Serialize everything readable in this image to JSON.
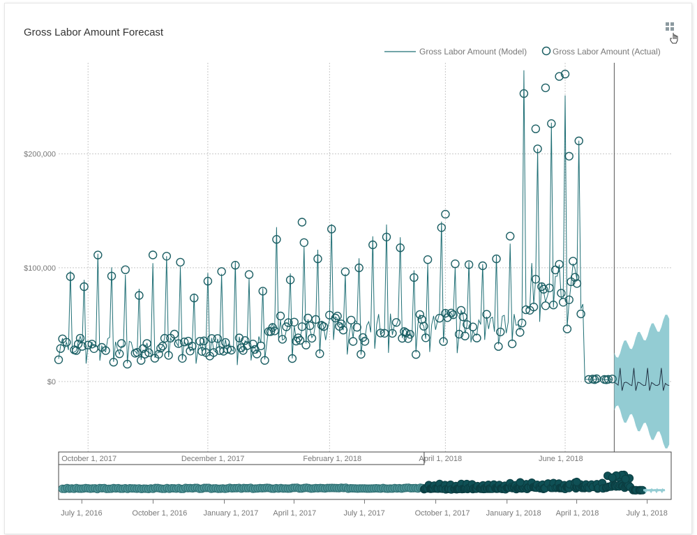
{
  "title": "Gross Labor Amount Forecast",
  "icons": {
    "expand": "collapse-arrows-icon",
    "cursor": "hand-pointer-icon"
  },
  "colors": {
    "model": "#1f6f75",
    "actual": "#1b5e63",
    "band": "#93ccd3",
    "overviewOld": "#4e9497",
    "overviewNew": "#0f5055",
    "grid": "#c8c8c8",
    "text": "#777777"
  },
  "legend": {
    "model": "Gross Labor Amount (Model)",
    "actual": "Gross Labor Amount (Actual)"
  },
  "chart_data": {
    "type": "line",
    "title": "Gross Labor Amount Forecast",
    "ylabel": "",
    "ylim": [
      -60000,
      280000
    ],
    "y_ticks": [
      {
        "value": 0,
        "label": "$0"
      },
      {
        "value": 100000,
        "label": "$100,000"
      },
      {
        "value": 200000,
        "label": "$200,000"
      }
    ],
    "x_start": "2017-09-16",
    "x_end": "2018-07-25",
    "forecast_start": "2018-06-26",
    "x_ticks": [
      {
        "date": "2017-10-01",
        "label": "October 1, 2017"
      },
      {
        "date": "2017-12-01",
        "label": "December 1, 2017"
      },
      {
        "date": "2018-02-01",
        "label": "February 1, 2018"
      },
      {
        "date": "2018-04-01",
        "label": "April 1, 2018"
      },
      {
        "date": "2018-06-01",
        "label": "June 1, 2018"
      }
    ],
    "segments": [
      {
        "from": "2017-09-16",
        "to": "2017-12-31",
        "base": 32000,
        "spike": 95000,
        "weekly": true
      },
      {
        "from": "2018-01-01",
        "to": "2018-03-31",
        "base": 48000,
        "spike": 118000,
        "weekly": true
      },
      {
        "from": "2018-04-01",
        "to": "2018-05-10",
        "base": 52000,
        "spike": 118000,
        "weekly": true
      },
      {
        "from": "2018-05-11",
        "to": "2018-06-10",
        "base": 85000,
        "spike": 250000,
        "weekly": true
      },
      {
        "from": "2018-06-11",
        "to": "2018-06-25",
        "base": 2000,
        "spike": 5000,
        "weekly": false
      }
    ],
    "notable_actuals": [
      {
        "date": "2018-05-29",
        "value": 268000
      },
      {
        "date": "2018-05-22",
        "value": 258000
      },
      {
        "date": "2018-05-17",
        "value": 222000
      },
      {
        "date": "2018-06-03",
        "value": 198000
      },
      {
        "date": "2018-04-01",
        "value": 147000
      },
      {
        "date": "2018-01-18",
        "value": 140000
      }
    ],
    "forecast": {
      "center": 0,
      "upper": 55000,
      "lower": -55000,
      "weekly_spike": 12000
    },
    "overview": {
      "x_start": "2016-06-01",
      "x_end": "2018-08-01",
      "selection_start": "2017-09-16",
      "x_ticks": [
        {
          "date": "2016-07-01",
          "label": "July 1, 2016"
        },
        {
          "date": "2016-10-01",
          "label": "October 1, 2016"
        },
        {
          "date": "2017-01-01",
          "label": "January 1, 2017"
        },
        {
          "date": "2017-04-01",
          "label": "April 1, 2017"
        },
        {
          "date": "2017-07-01",
          "label": "July 1, 2017"
        },
        {
          "date": "2017-10-01",
          "label": "October 1, 2017"
        },
        {
          "date": "2018-01-01",
          "label": "January 1, 2018"
        },
        {
          "date": "2018-04-01",
          "label": "April 1, 2018"
        },
        {
          "date": "2018-07-01",
          "label": "July 1, 2018"
        }
      ]
    }
  }
}
